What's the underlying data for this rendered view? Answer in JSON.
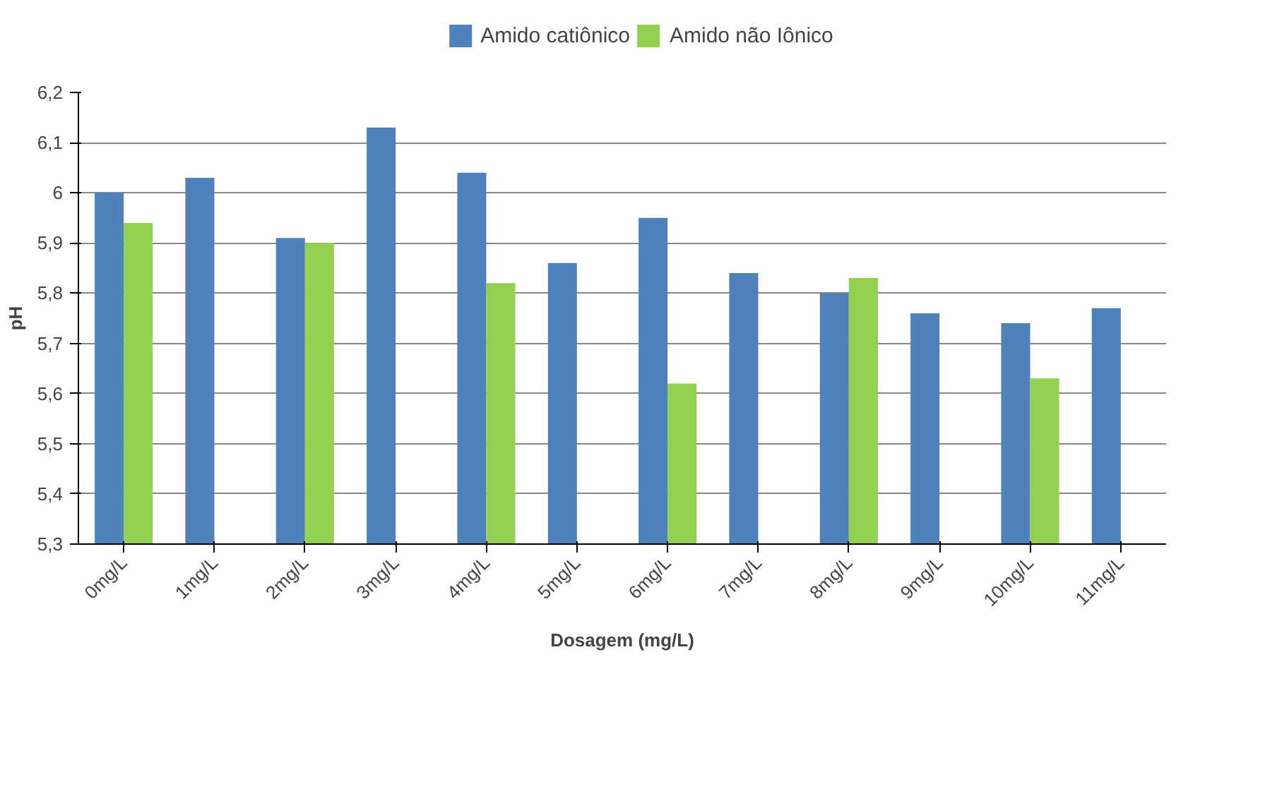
{
  "chart_data": {
    "type": "bar",
    "xlabel": "Dosagem (mg/L)",
    "ylabel": "pH",
    "categories": [
      "0mg/L",
      "1mg/L",
      "2mg/L",
      "3mg/L",
      "4mg/L",
      "5mg/L",
      "6mg/L",
      "7mg/L",
      "8mg/L",
      "9mg/L",
      "10mg/L",
      "11mg/L"
    ],
    "series": [
      {
        "name": "Amido catiônico",
        "color": "#4f81bd",
        "values": [
          6.0,
          6.03,
          5.91,
          6.13,
          6.04,
          5.86,
          5.95,
          5.84,
          5.8,
          5.76,
          5.74,
          5.77
        ]
      },
      {
        "name": "Amido não Iônico",
        "color": "#92d050",
        "values": [
          5.94,
          null,
          5.9,
          null,
          5.82,
          null,
          5.62,
          null,
          5.83,
          null,
          5.63,
          null
        ]
      }
    ],
    "ylim": [
      5.3,
      6.2
    ],
    "yticks": [
      {
        "value": 5.3,
        "label": "5,3"
      },
      {
        "value": 5.4,
        "label": "5,4"
      },
      {
        "value": 5.5,
        "label": "5,5"
      },
      {
        "value": 5.6,
        "label": "5,6"
      },
      {
        "value": 5.7,
        "label": "5,7"
      },
      {
        "value": 5.8,
        "label": "5,8"
      },
      {
        "value": 5.9,
        "label": "5,9"
      },
      {
        "value": 6.0,
        "label": "6"
      },
      {
        "value": 6.1,
        "label": "6,1"
      },
      {
        "value": 6.2,
        "label": "6,2"
      }
    ],
    "grid": "y",
    "legend": "top"
  }
}
